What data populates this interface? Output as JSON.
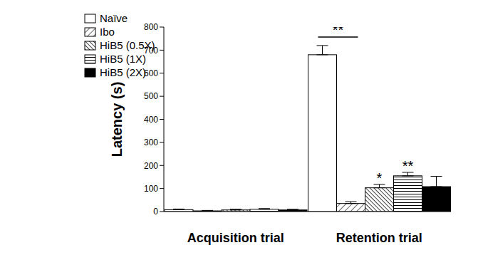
{
  "chart_data": {
    "type": "bar",
    "y_label": "Latency (s)",
    "categories": [
      "Acquisition trial",
      "Retention trial"
    ],
    "series": [
      {
        "name": "Naïve",
        "color": "#ffffff",
        "values": [
          8,
          680
        ],
        "errors": [
          3,
          40
        ]
      },
      {
        "name": "Ibo",
        "color": "#ffffff",
        "values": [
          3,
          35
        ],
        "errors": [
          2,
          8
        ]
      },
      {
        "name": "HiB5 (0.5X)",
        "color": "#ffffff",
        "values": [
          7,
          103
        ],
        "errors": [
          3,
          15
        ]
      },
      {
        "name": "HiB5 (1X)",
        "color": "#ffffff",
        "values": [
          10,
          155
        ],
        "errors": [
          3,
          15
        ]
      },
      {
        "name": "HiB5 (2X)",
        "color": "#000000",
        "values": [
          7,
          108
        ],
        "errors": [
          3,
          45
        ]
      }
    ],
    "ylim": [
      0,
      800
    ],
    "yticks": [
      0,
      100,
      200,
      300,
      400,
      500,
      600,
      700,
      800
    ],
    "grid": false,
    "legend": "upper left",
    "annotations": [
      {
        "text": "**",
        "category": "Retention trial",
        "series": "Naïve",
        "to": "Ibo"
      },
      {
        "text": "*",
        "category": "Retention trial",
        "series": "HiB5 (0.5X)"
      },
      {
        "text": "**",
        "category": "Retention trial",
        "series": "HiB5 (1X)"
      }
    ]
  }
}
